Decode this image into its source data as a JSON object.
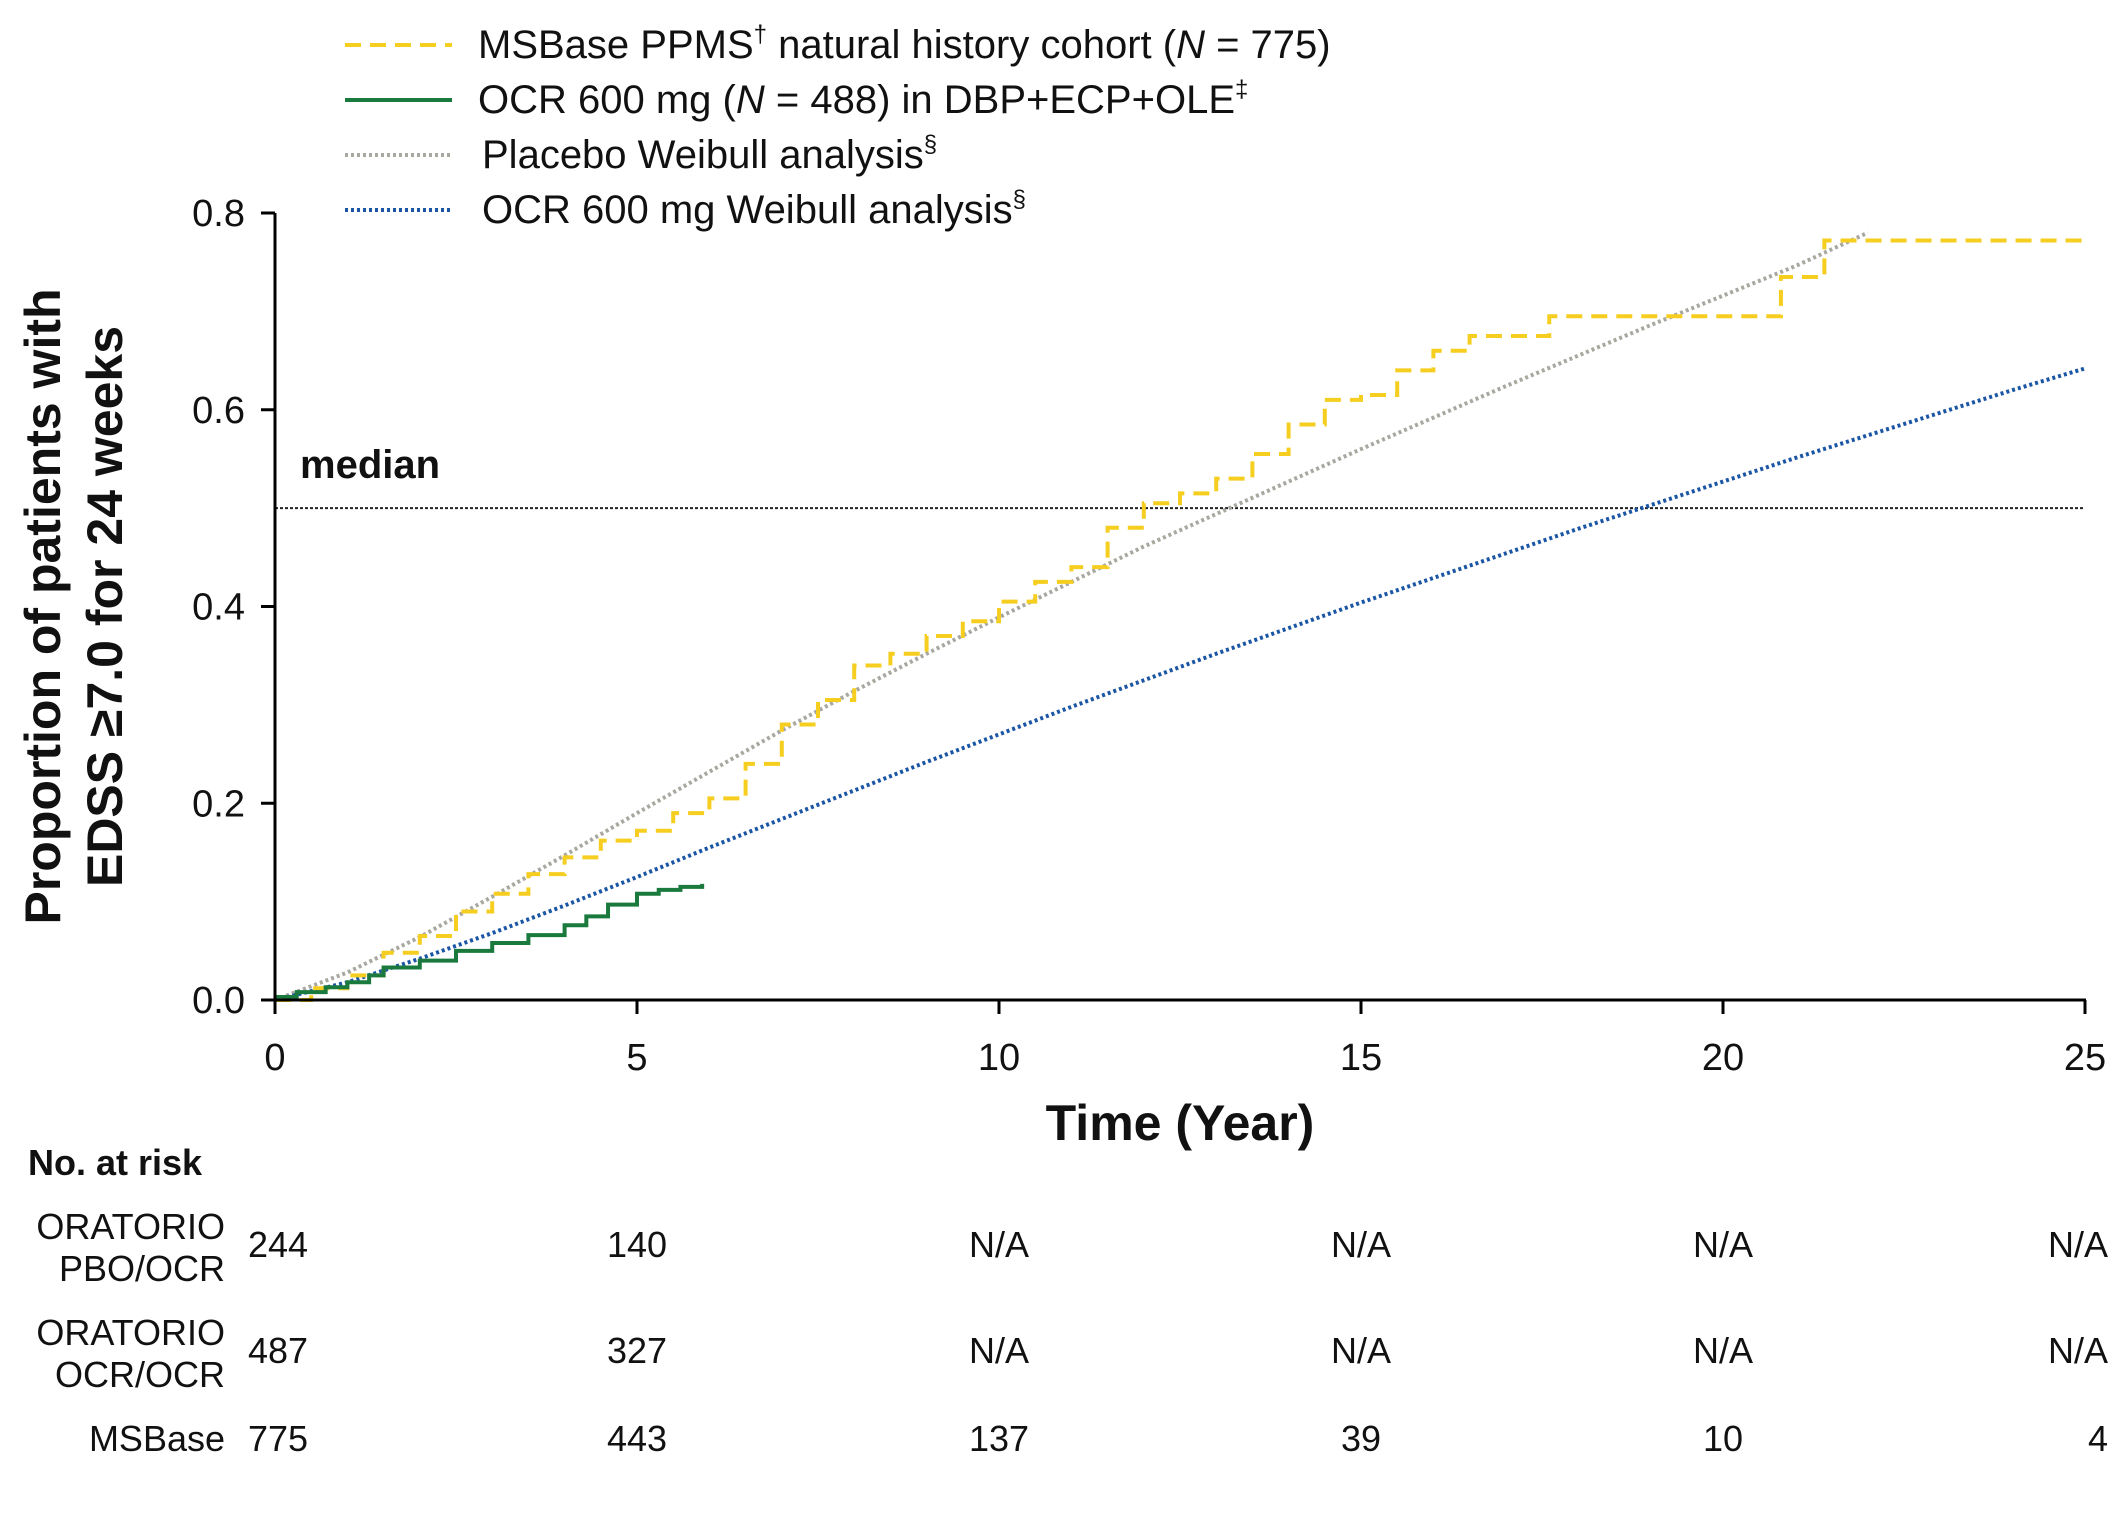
{
  "chart_data": {
    "type": "line",
    "xlabel": "Time (Year)",
    "ylabel_lines": [
      "Proportion of patients with",
      "EDSS ≥7.0 for 24 weeks"
    ],
    "xlim": [
      0,
      25
    ],
    "ylim": [
      0,
      0.8
    ],
    "x_ticks": [
      "0",
      "5",
      "10",
      "15",
      "20",
      "25"
    ],
    "y_ticks": [
      "0.0",
      "0.2",
      "0.4",
      "0.6",
      "0.8"
    ],
    "reference_line": {
      "y": 0.5,
      "label": "median"
    },
    "legend_position": "top",
    "series": [
      {
        "name_parts": [
          {
            "text": "MSBase PPMS"
          },
          {
            "text": "†",
            "sup": true
          },
          {
            "text": " natural history cohort ("
          },
          {
            "text": "N",
            "italic": true
          },
          {
            "text": " = 775)"
          }
        ],
        "color": "#F5CE1F",
        "style": "dashed",
        "step": true,
        "x": [
          0,
          0.5,
          1.0,
          1.5,
          2.0,
          2.5,
          3.0,
          3.5,
          4.0,
          4.5,
          5.0,
          5.5,
          6.0,
          6.5,
          7.0,
          7.5,
          8.0,
          8.5,
          9.0,
          9.5,
          10.0,
          10.5,
          11.0,
          11.5,
          12.0,
          12.5,
          13.0,
          13.5,
          14.0,
          14.5,
          15.0,
          15.5,
          16.0,
          16.5,
          17.0,
          17.6,
          18.5,
          19.5,
          20.8,
          21.4,
          22.0,
          25.0
        ],
        "y": [
          0.0,
          0.012,
          0.025,
          0.048,
          0.065,
          0.09,
          0.108,
          0.128,
          0.145,
          0.162,
          0.172,
          0.19,
          0.205,
          0.24,
          0.28,
          0.305,
          0.34,
          0.352,
          0.37,
          0.385,
          0.405,
          0.425,
          0.44,
          0.48,
          0.505,
          0.515,
          0.53,
          0.555,
          0.585,
          0.61,
          0.615,
          0.64,
          0.66,
          0.675,
          0.675,
          0.695,
          0.695,
          0.695,
          0.735,
          0.772,
          0.772,
          0.772
        ]
      },
      {
        "name_parts": [
          {
            "text": "OCR 600 mg ("
          },
          {
            "text": "N",
            "italic": true
          },
          {
            "text": " = 488) in DBP+ECP+OLE"
          },
          {
            "text": "‡",
            "sup": true
          }
        ],
        "color": "#1A7A3E",
        "style": "solid",
        "step": true,
        "x": [
          0,
          0.3,
          0.7,
          1.0,
          1.3,
          1.5,
          2.0,
          2.5,
          3.0,
          3.5,
          4.0,
          4.3,
          4.6,
          5.0,
          5.3,
          5.6,
          5.9
        ],
        "y": [
          0.003,
          0.008,
          0.013,
          0.018,
          0.025,
          0.033,
          0.04,
          0.05,
          0.058,
          0.066,
          0.076,
          0.085,
          0.097,
          0.108,
          0.112,
          0.115,
          0.118
        ]
      },
      {
        "name_parts": [
          {
            "text": "Placebo Weibull analysis"
          },
          {
            "text": "§",
            "sup": true
          }
        ],
        "color": "#A8A8A0",
        "style": "dotted",
        "step": false,
        "x": [
          0,
          1,
          2,
          3,
          4,
          5,
          6,
          7,
          8,
          9,
          10,
          11,
          12,
          13,
          14,
          15,
          16,
          17,
          18,
          19,
          20,
          21,
          22
        ],
        "y": [
          0.0,
          0.028,
          0.064,
          0.105,
          0.147,
          0.19,
          0.232,
          0.274,
          0.314,
          0.352,
          0.389,
          0.425,
          0.461,
          0.494,
          0.527,
          0.56,
          0.592,
          0.624,
          0.655,
          0.686,
          0.716,
          0.746,
          0.78
        ]
      },
      {
        "name_parts": [
          {
            "text": "OCR 600 mg Weibull analysis"
          },
          {
            "text": "§",
            "sup": true
          }
        ],
        "color": "#1B56A4",
        "style": "dotted",
        "step": false,
        "x": [
          0,
          1,
          2,
          3,
          4,
          5,
          6,
          7,
          8,
          9,
          10,
          11,
          12,
          13,
          14,
          15,
          16,
          17,
          18,
          19,
          20,
          21,
          22,
          23,
          24,
          25
        ],
        "y": [
          0.0,
          0.018,
          0.042,
          0.068,
          0.096,
          0.125,
          0.155,
          0.184,
          0.213,
          0.242,
          0.27,
          0.298,
          0.325,
          0.352,
          0.378,
          0.404,
          0.429,
          0.454,
          0.479,
          0.503,
          0.527,
          0.551,
          0.574,
          0.597,
          0.62,
          0.642
        ]
      }
    ]
  },
  "risk_table": {
    "title": "No. at risk",
    "rows": [
      {
        "label_lines": [
          "ORATORIO",
          "PBO/OCR"
        ],
        "values": [
          "244",
          "140",
          "N/A",
          "N/A",
          "N/A",
          "N/A"
        ]
      },
      {
        "label_lines": [
          "ORATORIO",
          "OCR/OCR"
        ],
        "values": [
          "487",
          "327",
          "N/A",
          "N/A",
          "N/A",
          "N/A"
        ]
      },
      {
        "label_lines": [
          "MSBase"
        ],
        "values": [
          "775",
          "443",
          "137",
          "39",
          "10",
          "4"
        ]
      }
    ]
  }
}
